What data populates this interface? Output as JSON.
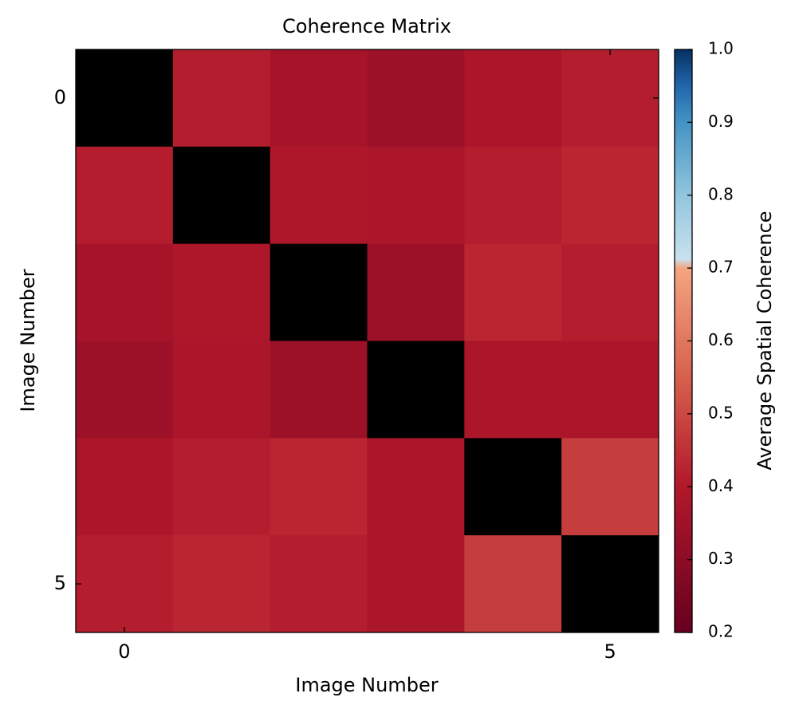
{
  "chart_data": {
    "type": "heatmap",
    "title": "Coherence Matrix",
    "xlabel": "Image Number",
    "ylabel": "Image Number",
    "colorbar_label": "Average Spatial Coherence",
    "colormap": "RdBu",
    "bad_color": "#000000",
    "xlim": [
      -0.5,
      5.5
    ],
    "ylim": [
      5.5,
      -0.5
    ],
    "xticks": [
      0,
      5
    ],
    "yticks": [
      0,
      5
    ],
    "clim": [
      0.2,
      1.0
    ],
    "cticks": [
      0.2,
      0.3,
      0.4,
      0.5,
      0.6,
      0.7,
      0.8,
      0.9,
      {
        "value": 1,
        "label": "1.0"
      }
    ],
    "z": [
      [
        null,
        0.41,
        0.37,
        0.34,
        0.38,
        0.41
      ],
      [
        0.41,
        null,
        0.39,
        0.38,
        0.41,
        0.43
      ],
      [
        0.37,
        0.39,
        null,
        0.34,
        0.43,
        0.41
      ],
      [
        0.34,
        0.38,
        0.34,
        null,
        0.38,
        0.38
      ],
      [
        0.38,
        0.41,
        0.43,
        0.38,
        null,
        0.48
      ],
      [
        0.41,
        0.43,
        0.41,
        0.38,
        0.48,
        null
      ]
    ]
  }
}
